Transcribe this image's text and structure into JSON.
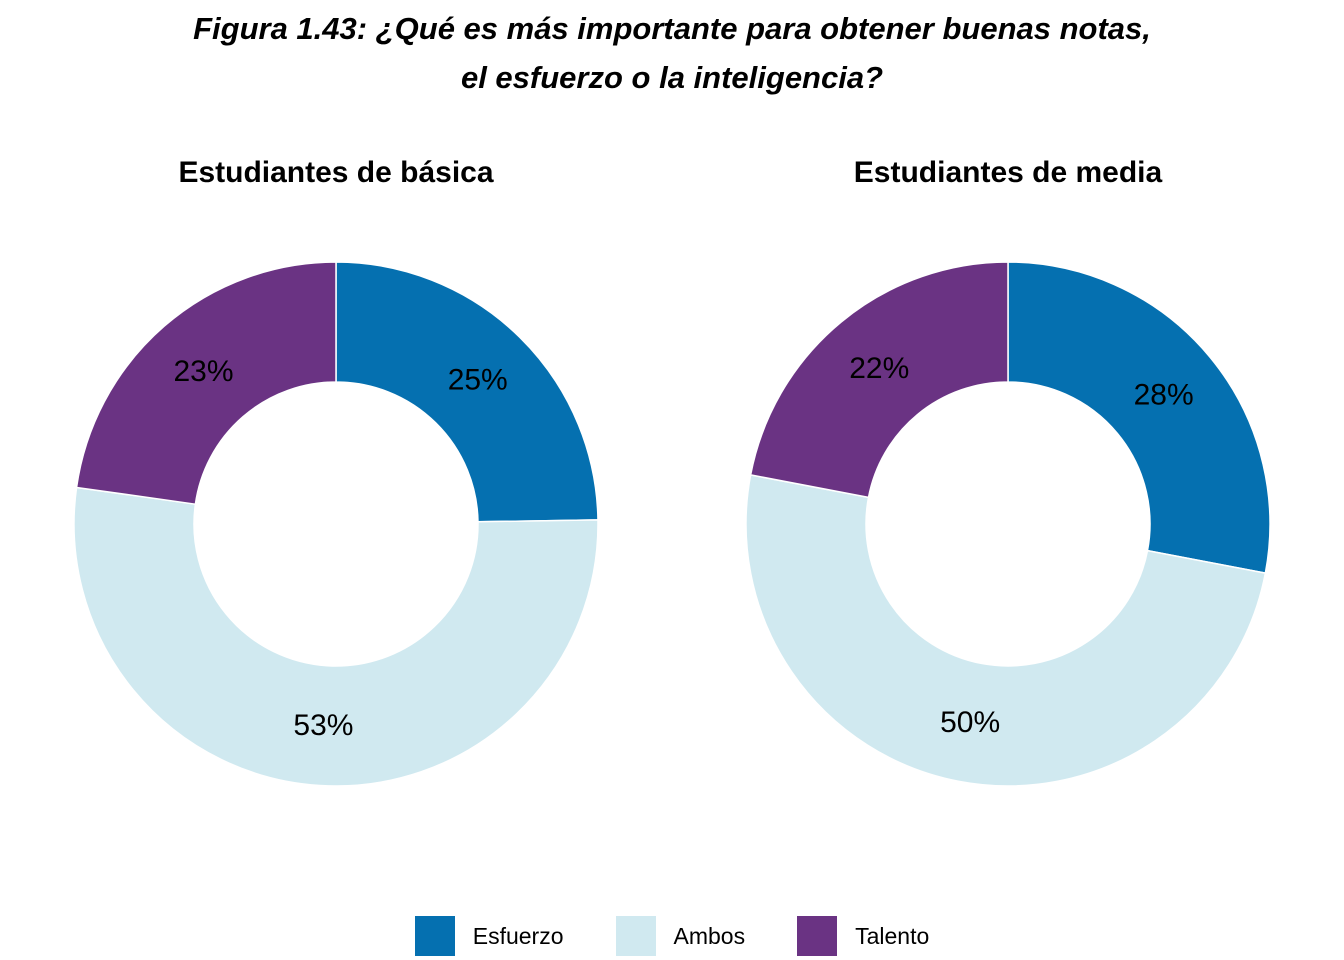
{
  "figure": {
    "title_line1": "Figura 1.43: ¿Qué es más importante para obtener buenas notas,",
    "title_line2": "el esfuerzo o la inteligencia?"
  },
  "colors": {
    "Esfuerzo": "#0570b0",
    "Ambos": "#d0e9f0",
    "Talento": "#6a3383"
  },
  "legend": {
    "position": "bottom",
    "items": [
      "Esfuerzo",
      "Ambos",
      "Talento"
    ]
  },
  "chart_data": [
    {
      "type": "pie",
      "variant": "donut",
      "title": "Estudiantes de básica",
      "categories": [
        "Esfuerzo",
        "Ambos",
        "Talento"
      ],
      "values": [
        25,
        53,
        23
      ],
      "labels": [
        "25%",
        "53%",
        "23%"
      ]
    },
    {
      "type": "pie",
      "variant": "donut",
      "title": "Estudiantes de media",
      "categories": [
        "Esfuerzo",
        "Ambos",
        "Talento"
      ],
      "values": [
        28,
        50,
        22
      ],
      "labels": [
        "28%",
        "50%",
        "22%"
      ]
    }
  ]
}
